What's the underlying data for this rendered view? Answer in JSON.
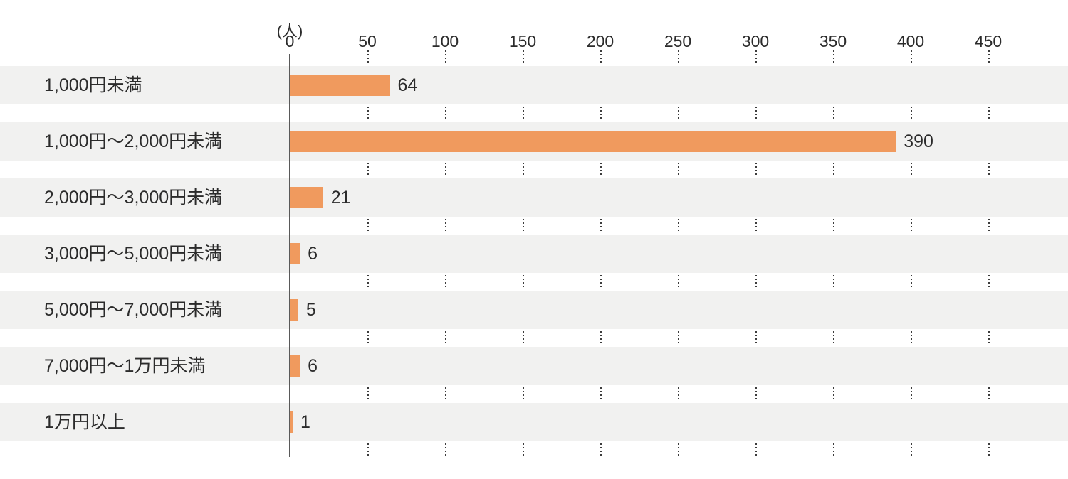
{
  "chart_data": {
    "type": "bar",
    "orientation": "horizontal",
    "title": "",
    "unit_label": "(人)",
    "categories": [
      "1,000円未満",
      "1,000円〜2,000円未満",
      "2,000円〜3,000円未満",
      "3,000円〜5,000円未満",
      "5,000円〜7,000円未満",
      "7,000円〜1万円未満",
      "1万円以上"
    ],
    "values": [
      64,
      390,
      21,
      6,
      5,
      6,
      1
    ],
    "x_ticks": [
      0,
      50,
      100,
      150,
      200,
      250,
      300,
      350,
      400,
      450
    ],
    "xlim": [
      0,
      500
    ],
    "grid": "dotted-vertical-in-row-gaps",
    "legend": "none",
    "colors": {
      "bar": "#F09A5E",
      "row_stripe": "#F1F1F0",
      "background": "#FFFFFF",
      "text": "#2B2B2B",
      "axis_line": "#595959",
      "grid_dots": "#3C3C3C"
    }
  }
}
